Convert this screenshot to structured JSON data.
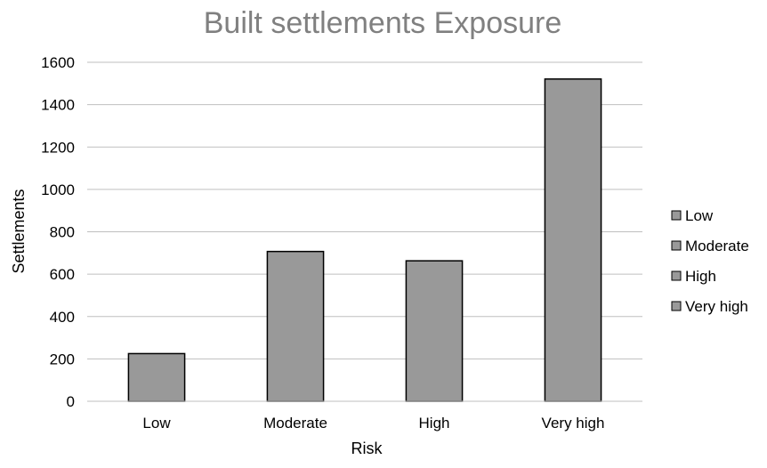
{
  "chart_data": {
    "type": "bar",
    "title": "Built settlements Exposure",
    "xlabel": "Risk",
    "ylabel": "Settlements",
    "categories": [
      "Low",
      "Moderate",
      "High",
      "Very high"
    ],
    "series": [
      {
        "values": [
          225,
          707,
          663,
          1521
        ]
      }
    ],
    "ylim": [
      0,
      1600
    ],
    "yticks": [
      0,
      200,
      400,
      600,
      800,
      1000,
      1200,
      1400,
      1600
    ],
    "grid": true,
    "legend": {
      "placement": "right",
      "entries": [
        "Low",
        "Moderate",
        "High",
        "Very high"
      ]
    },
    "colors": {
      "bar_fill": "#999999",
      "bar_stroke": "#000000",
      "grid": "#bfbfbf",
      "title": "#808080",
      "text": "#000000"
    }
  }
}
